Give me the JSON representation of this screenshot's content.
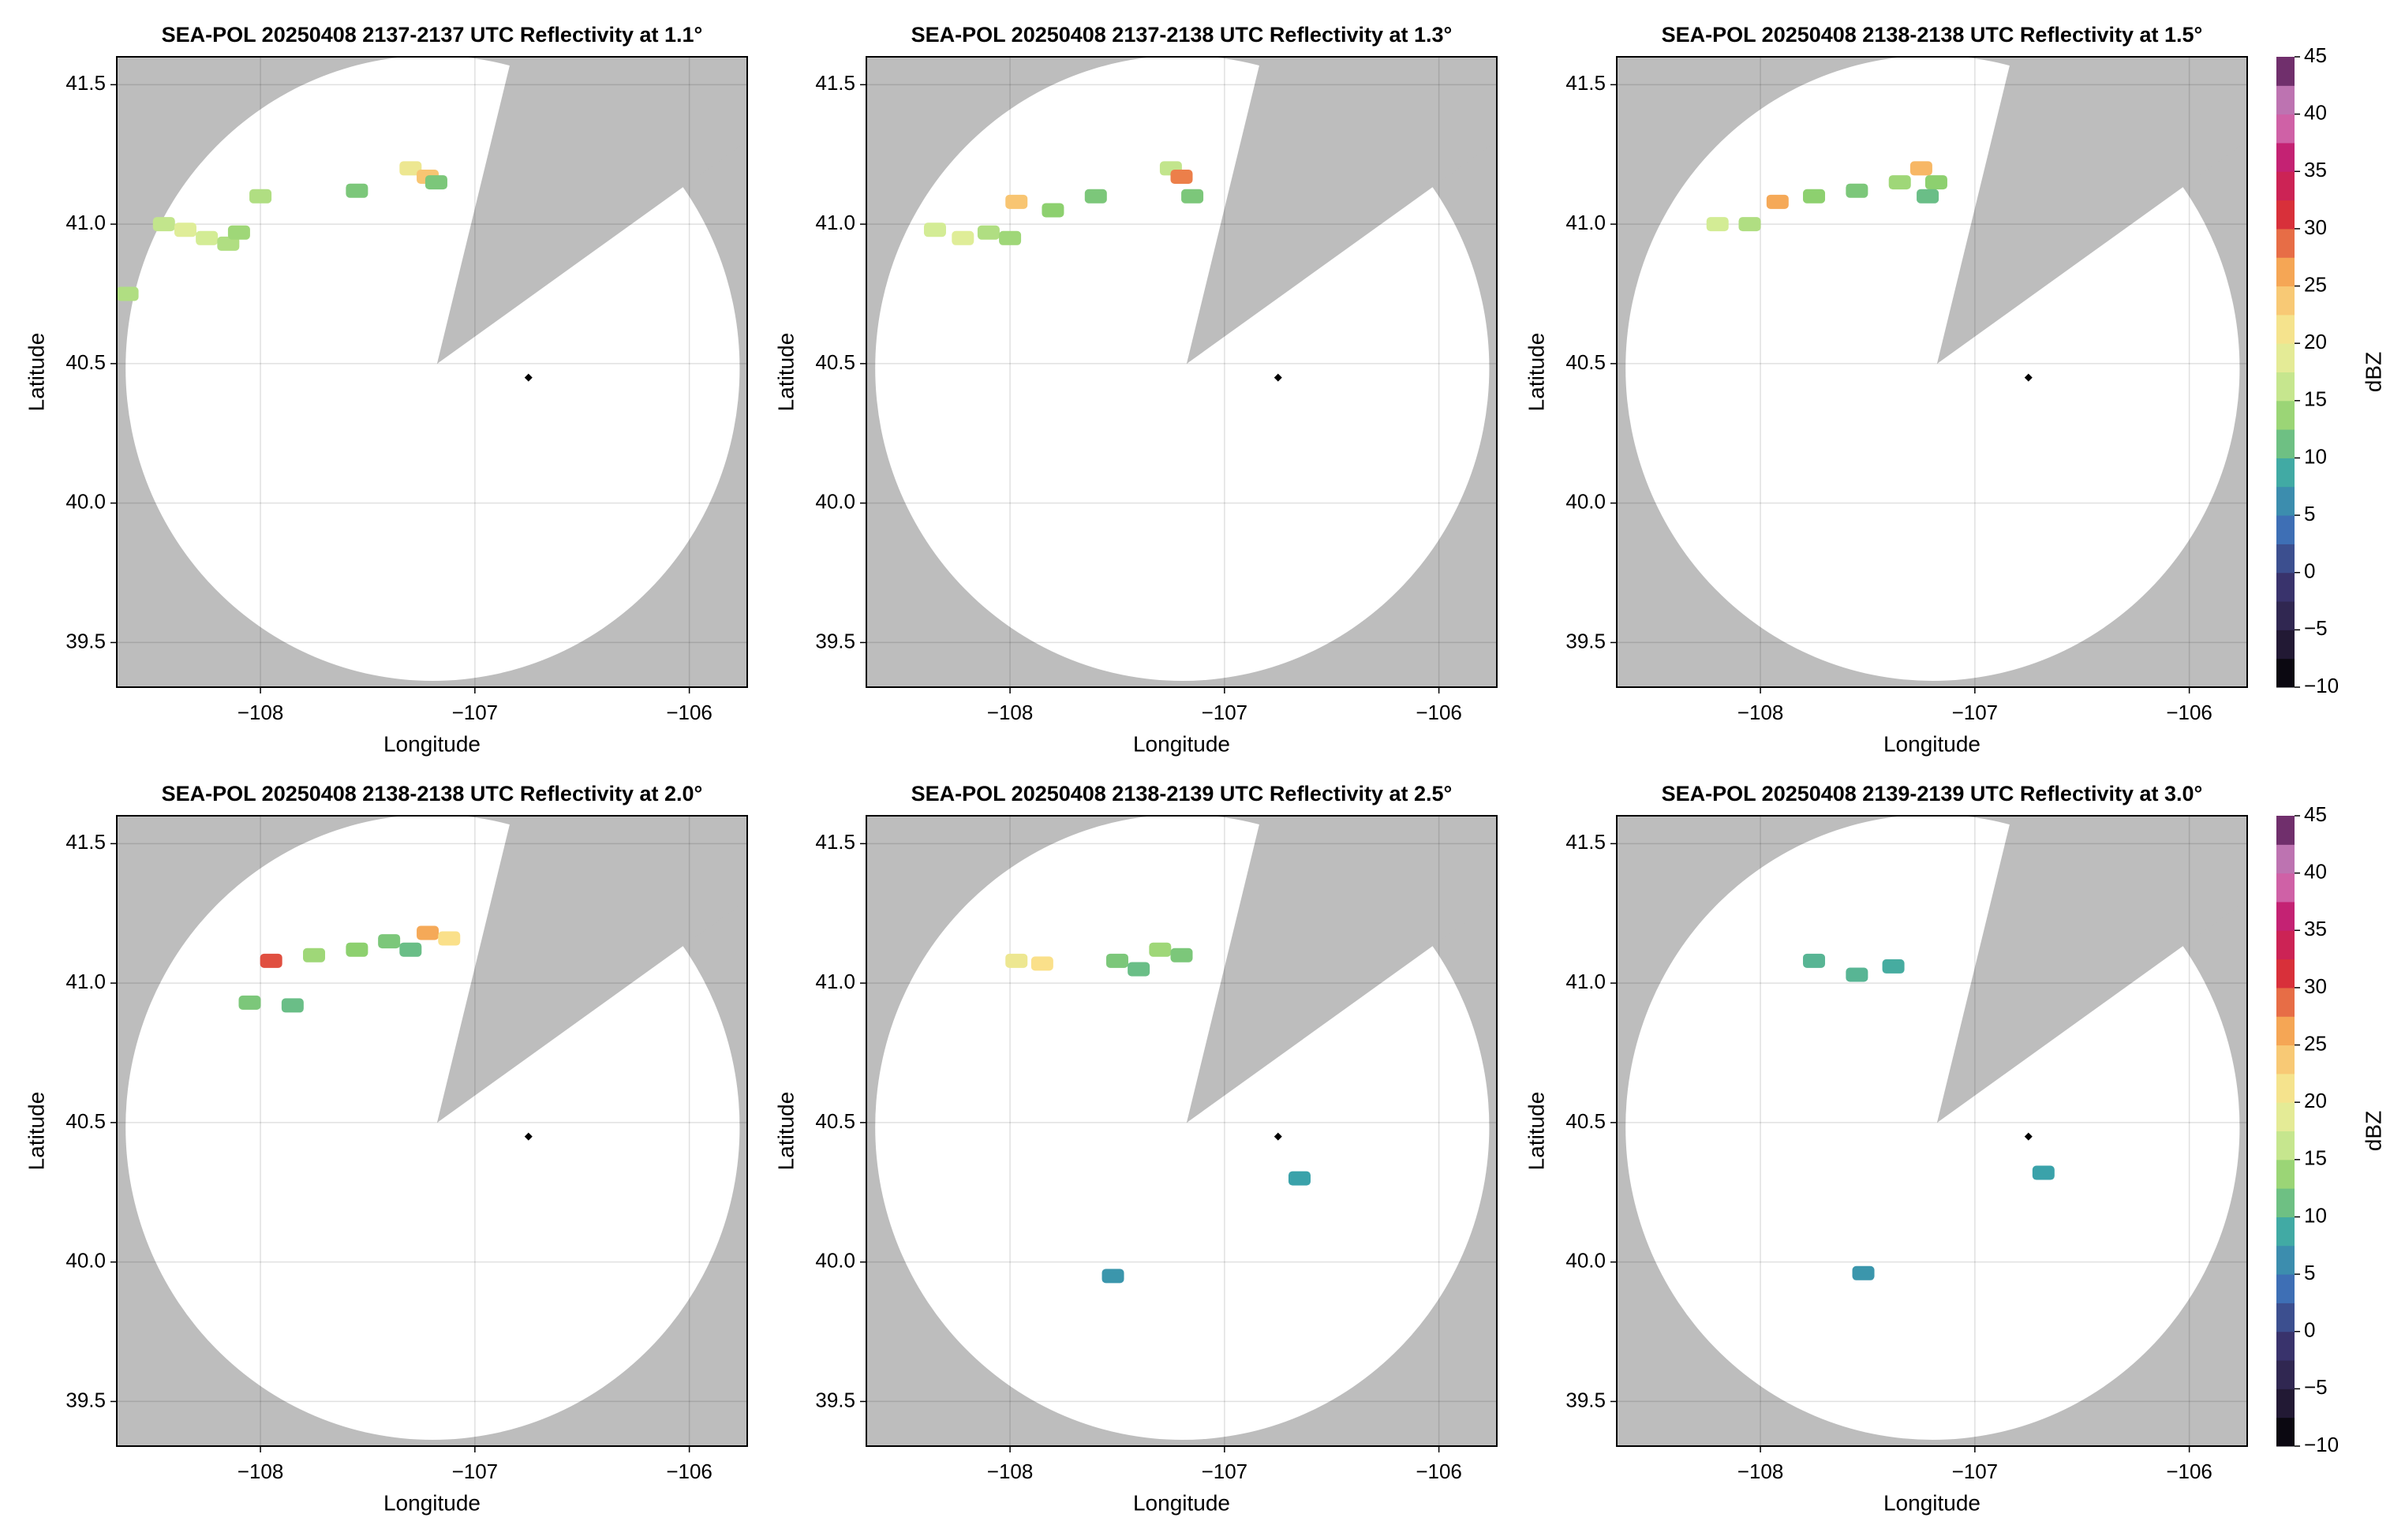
{
  "chart_data": [
    {
      "type": "radar",
      "title": "SEA-POL 20250408 2137-2137 UTC Reflectivity at 1.1°",
      "xlabel": "Longitude",
      "ylabel": "Latitude",
      "xlim": [
        -108.67,
        -105.73
      ],
      "ylim": [
        39.34,
        41.6
      ],
      "xticks": [
        {
          "value": -108,
          "label": "−108"
        },
        {
          "value": -107,
          "label": "−107"
        },
        {
          "value": -106,
          "label": "−106"
        }
      ],
      "yticks": [
        39.5,
        {
          "value": 40,
          "label": "40.0"
        },
        40.5,
        {
          "value": 41,
          "label": "41.0"
        },
        41.5
      ],
      "grid": true,
      "site": {
        "x": -106.75,
        "y": 40.45
      },
      "x": [
        -108.45,
        -108.35,
        -108.25,
        -108.15,
        -108.1,
        -108.0,
        -107.55,
        -107.3,
        -107.22,
        -107.18,
        -108.62
      ],
      "y": [
        41.0,
        40.98,
        40.95,
        40.93,
        40.97,
        41.1,
        41.12,
        41.2,
        41.17,
        41.15,
        40.75
      ],
      "values": [
        16,
        18,
        17,
        15,
        14,
        15,
        12,
        20,
        24,
        12,
        15
      ]
    },
    {
      "type": "radar",
      "title": "SEA-POL 20250408 2137-2138 UTC Reflectivity at 1.3°",
      "xlabel": "Longitude",
      "ylabel": "Latitude",
      "xlim": [
        -108.67,
        -105.73
      ],
      "ylim": [
        39.34,
        41.6
      ],
      "xticks": [
        {
          "value": -108,
          "label": "−108"
        },
        {
          "value": -107,
          "label": "−107"
        },
        {
          "value": -106,
          "label": "−106"
        }
      ],
      "yticks": [
        39.5,
        {
          "value": 40,
          "label": "40.0"
        },
        40.5,
        {
          "value": 41,
          "label": "41.0"
        },
        41.5
      ],
      "grid": true,
      "site": {
        "x": -106.75,
        "y": 40.45
      },
      "x": [
        -108.35,
        -108.22,
        -108.1,
        -107.97,
        -107.8,
        -107.6,
        -107.25,
        -107.2,
        -107.15,
        -108.0
      ],
      "y": [
        40.98,
        40.95,
        40.97,
        41.08,
        41.05,
        41.1,
        41.2,
        41.17,
        41.1,
        40.95
      ],
      "values": [
        17,
        18,
        15,
        24,
        13,
        12,
        16,
        28,
        12,
        14
      ]
    },
    {
      "type": "radar",
      "title": "SEA-POL 20250408 2138-2138 UTC Reflectivity at 1.5°",
      "xlabel": "Longitude",
      "ylabel": "Latitude",
      "xlim": [
        -108.67,
        -105.73
      ],
      "ylim": [
        39.34,
        41.6
      ],
      "xticks": [
        {
          "value": -108,
          "label": "−108"
        },
        {
          "value": -107,
          "label": "−107"
        },
        {
          "value": -106,
          "label": "−106"
        }
      ],
      "yticks": [
        39.5,
        {
          "value": 40,
          "label": "40.0"
        },
        40.5,
        {
          "value": 41,
          "label": "41.0"
        },
        41.5
      ],
      "grid": true,
      "site": {
        "x": -106.75,
        "y": 40.45
      },
      "x": [
        -108.2,
        -108.05,
        -107.92,
        -107.75,
        -107.55,
        -107.35,
        -107.25,
        -107.18,
        -107.22
      ],
      "y": [
        41.0,
        41.0,
        41.08,
        41.1,
        41.12,
        41.15,
        41.2,
        41.15,
        41.1
      ],
      "values": [
        17,
        15,
        26,
        13,
        12,
        14,
        25,
        13,
        11
      ],
      "colorbar": {
        "label": "dBZ",
        "lim": [
          -10,
          45
        ],
        "ticks": [
          {
            "value": -10,
            "label": "−10"
          },
          {
            "value": -5,
            "label": "−5"
          },
          0,
          5,
          10,
          15,
          20,
          25,
          30,
          35,
          40,
          45
        ],
        "colors": [
          "#000000",
          "#2a1f3f",
          "#3b3570",
          "#3e6fb5",
          "#3aa6a9",
          "#8ccf6e",
          "#dcef9a",
          "#fbe08a",
          "#f4a050",
          "#d8303a",
          "#c2186b",
          "#d68ac8",
          "#4a0d4a"
        ]
      }
    },
    {
      "type": "radar",
      "title": "SEA-POL 20250408 2138-2138 UTC Reflectivity at 2.0°",
      "xlabel": "Longitude",
      "ylabel": "Latitude",
      "xlim": [
        -108.67,
        -105.73
      ],
      "ylim": [
        39.34,
        41.6
      ],
      "xticks": [
        {
          "value": -108,
          "label": "−108"
        },
        {
          "value": -107,
          "label": "−107"
        },
        {
          "value": -106,
          "label": "−106"
        }
      ],
      "yticks": [
        39.5,
        {
          "value": 40,
          "label": "40.0"
        },
        40.5,
        {
          "value": 41,
          "label": "41.0"
        },
        41.5
      ],
      "grid": true,
      "site": {
        "x": -106.75,
        "y": 40.45
      },
      "x": [
        -107.95,
        -107.75,
        -107.55,
        -107.4,
        -107.22,
        -107.12,
        -107.3,
        -108.05,
        -107.85
      ],
      "y": [
        41.08,
        41.1,
        41.12,
        41.15,
        41.18,
        41.16,
        41.12,
        40.93,
        40.92
      ],
      "values": [
        30,
        14,
        13,
        12,
        26,
        22,
        11,
        12,
        11
      ]
    },
    {
      "type": "radar",
      "title": "SEA-POL 20250408 2138-2139 UTC Reflectivity at 2.5°",
      "xlabel": "Longitude",
      "ylabel": "Latitude",
      "xlim": [
        -108.67,
        -105.73
      ],
      "ylim": [
        39.34,
        41.6
      ],
      "xticks": [
        {
          "value": -108,
          "label": "−108"
        },
        {
          "value": -107,
          "label": "−107"
        },
        {
          "value": -106,
          "label": "−106"
        }
      ],
      "yticks": [
        39.5,
        {
          "value": 40,
          "label": "40.0"
        },
        40.5,
        {
          "value": 41,
          "label": "41.0"
        },
        41.5
      ],
      "grid": true,
      "site": {
        "x": -106.75,
        "y": 40.45
      },
      "x": [
        -107.97,
        -107.85,
        -107.5,
        -107.4,
        -107.3,
        -107.2,
        -107.52,
        -106.65
      ],
      "y": [
        41.08,
        41.07,
        41.08,
        41.05,
        41.12,
        41.1,
        39.95,
        40.3
      ],
      "values": [
        20,
        22,
        12,
        11,
        14,
        12,
        7,
        8
      ]
    },
    {
      "type": "radar",
      "title": "SEA-POL 20250408 2139-2139 UTC Reflectivity at 3.0°",
      "xlabel": "Longitude",
      "ylabel": "Latitude",
      "xlim": [
        -108.67,
        -105.73
      ],
      "ylim": [
        39.34,
        41.6
      ],
      "xticks": [
        {
          "value": -108,
          "label": "−108"
        },
        {
          "value": -107,
          "label": "−107"
        },
        {
          "value": -106,
          "label": "−106"
        }
      ],
      "yticks": [
        39.5,
        {
          "value": 40,
          "label": "40.0"
        },
        40.5,
        {
          "value": 41,
          "label": "41.0"
        },
        41.5
      ],
      "grid": true,
      "site": {
        "x": -106.75,
        "y": 40.45
      },
      "x": [
        -107.75,
        -107.55,
        -107.38,
        -106.68,
        -107.52
      ],
      "y": [
        41.08,
        41.03,
        41.06,
        40.32,
        39.96
      ],
      "values": [
        10,
        10,
        9,
        8,
        7
      ],
      "colorbar": {
        "label": "dBZ",
        "lim": [
          -10,
          45
        ],
        "ticks": [
          {
            "value": -10,
            "label": "−10"
          },
          {
            "value": -5,
            "label": "−5"
          },
          0,
          5,
          10,
          15,
          20,
          25,
          30,
          35,
          40,
          45
        ],
        "colors": [
          "#000000",
          "#2a1f3f",
          "#3b3570",
          "#3e6fb5",
          "#3aa6a9",
          "#8ccf6e",
          "#dcef9a",
          "#fbe08a",
          "#f4a050",
          "#d8303a",
          "#c2186b",
          "#d68ac8",
          "#4a0d4a"
        ]
      }
    }
  ]
}
